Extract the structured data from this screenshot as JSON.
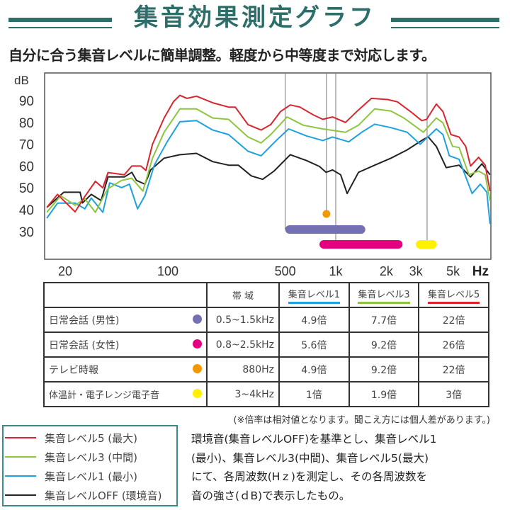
{
  "header": {
    "title": "集音効果測定グラフ",
    "subtitle": "自分に合う集音レベルに簡単調整。軽度から中等度まで対応します。",
    "accent_color": "#2e6e6a"
  },
  "chart_data": {
    "type": "line",
    "x_scale": "log",
    "xlim": [
      18.8,
      8300
    ],
    "ylim": [
      22,
      98
    ],
    "ylabel": "dB",
    "xlabel": "Hz",
    "grid": false,
    "y_ticks": [
      "90",
      "80",
      "70",
      "60",
      "50",
      "40",
      "30"
    ],
    "y_tick_values": [
      90,
      80,
      70,
      60,
      50,
      40,
      30
    ],
    "x_ticks": [
      {
        "label": "20",
        "value": 20
      },
      {
        "label": "100",
        "value": 100
      },
      {
        "label": "500",
        "value": 500
      },
      {
        "label": "1k",
        "value": 1000
      },
      {
        "label": "2k",
        "value": 2000
      },
      {
        "label": "3k",
        "value": 3000
      },
      {
        "label": "5k",
        "value": 5000
      }
    ],
    "series": [
      {
        "name": "集音レベル5 (最大)",
        "color": "#d7262e",
        "points": [
          [
            19,
            41
          ],
          [
            22,
            47
          ],
          [
            28,
            39
          ],
          [
            32,
            46
          ],
          [
            37,
            53
          ],
          [
            41,
            50
          ],
          [
            44,
            57
          ],
          [
            55,
            56
          ],
          [
            61,
            60
          ],
          [
            69,
            60
          ],
          [
            74,
            58
          ],
          [
            81,
            70
          ],
          [
            95,
            82
          ],
          [
            108,
            89.5
          ],
          [
            118,
            92.4
          ],
          [
            130,
            91
          ],
          [
            148,
            92
          ],
          [
            185,
            89
          ],
          [
            230,
            87
          ],
          [
            252,
            87
          ],
          [
            300,
            79
          ],
          [
            359,
            76.5
          ],
          [
            410,
            79
          ],
          [
            469,
            85
          ],
          [
            536,
            88
          ],
          [
            612,
            87
          ],
          [
            732,
            83.5
          ],
          [
            837,
            81.4
          ],
          [
            956,
            82.5
          ],
          [
            1143,
            80
          ],
          [
            1366,
            85.7
          ],
          [
            1632,
            91
          ],
          [
            2039,
            90.5
          ],
          [
            2330,
            89.4
          ],
          [
            2784,
            85
          ],
          [
            3254,
            80.8
          ],
          [
            3479,
            81.4
          ],
          [
            3974,
            88.4
          ],
          [
            4347,
            85
          ],
          [
            4856,
            74.4
          ],
          [
            5430,
            73.3
          ],
          [
            5944,
            69
          ],
          [
            6355,
            60
          ],
          [
            7100,
            64
          ],
          [
            7770,
            60.4
          ],
          [
            8300,
            48.5
          ]
        ]
      },
      {
        "name": "集音レベル3 (中間)",
        "color": "#8cc63f",
        "points": [
          [
            19,
            38.8
          ],
          [
            23,
            46.4
          ],
          [
            28,
            42
          ],
          [
            32,
            45
          ],
          [
            37,
            38.8
          ],
          [
            42,
            47
          ],
          [
            44,
            49.6
          ],
          [
            53,
            53.4
          ],
          [
            61,
            54.4
          ],
          [
            71,
            48.5
          ],
          [
            81,
            63.6
          ],
          [
            95,
            75.5
          ],
          [
            118,
            86.2
          ],
          [
            148,
            86.2
          ],
          [
            185,
            82
          ],
          [
            230,
            81.4
          ],
          [
            300,
            73.3
          ],
          [
            359,
            70.6
          ],
          [
            410,
            74.4
          ],
          [
            513,
            82.5
          ],
          [
            641,
            78.7
          ],
          [
            837,
            77
          ],
          [
            1143,
            75.5
          ],
          [
            1366,
            78.7
          ],
          [
            1706,
            86.2
          ],
          [
            2131,
            85.2
          ],
          [
            2546,
            82
          ],
          [
            3327,
            75.5
          ],
          [
            3974,
            82
          ],
          [
            4347,
            79.8
          ],
          [
            4968,
            69
          ],
          [
            5430,
            68.5
          ],
          [
            6215,
            56
          ],
          [
            7100,
            57.7
          ],
          [
            7770,
            56
          ],
          [
            8300,
            44
          ]
        ]
      },
      {
        "name": "集音レベル1 (最小)",
        "color": "#1ea1dc",
        "points": [
          [
            19,
            36.1
          ],
          [
            22,
            43
          ],
          [
            28,
            43
          ],
          [
            32,
            40.4
          ],
          [
            35,
            45.3
          ],
          [
            41,
            38.8
          ],
          [
            45,
            52.3
          ],
          [
            53,
            50.1
          ],
          [
            59,
            51.7
          ],
          [
            66,
            40.4
          ],
          [
            73,
            46.4
          ],
          [
            83,
            60.4
          ],
          [
            99,
            71.1
          ],
          [
            118,
            80.3
          ],
          [
            148,
            80.8
          ],
          [
            185,
            76.5
          ],
          [
            230,
            74.4
          ],
          [
            300,
            66.8
          ],
          [
            359,
            64.7
          ],
          [
            449,
            72.2
          ],
          [
            524,
            77
          ],
          [
            670,
            73.8
          ],
          [
            837,
            71.7
          ],
          [
            956,
            73.3
          ],
          [
            1195,
            71.1
          ],
          [
            1428,
            75.5
          ],
          [
            1706,
            79.2
          ],
          [
            2131,
            77.6
          ],
          [
            2662,
            75.5
          ],
          [
            3184,
            70
          ],
          [
            3974,
            77
          ],
          [
            4347,
            74.4
          ],
          [
            4750,
            64.7
          ],
          [
            5430,
            63.1
          ],
          [
            6490,
            47.4
          ],
          [
            7260,
            51.7
          ],
          [
            7940,
            48
          ],
          [
            8300,
            33.4
          ]
        ]
      },
      {
        "name": "集音レベルOFF (環境音)",
        "color": "#222222",
        "points": [
          [
            19,
            41
          ],
          [
            24,
            48
          ],
          [
            30,
            48
          ],
          [
            31,
            43.1
          ],
          [
            35,
            47
          ],
          [
            40,
            44.2
          ],
          [
            44,
            55
          ],
          [
            55,
            55
          ],
          [
            61,
            57.1
          ],
          [
            65,
            53.4
          ],
          [
            73,
            51.7
          ],
          [
            79,
            58.2
          ],
          [
            95,
            63.6
          ],
          [
            118,
            65.2
          ],
          [
            148,
            65.8
          ],
          [
            185,
            62
          ],
          [
            230,
            60.4
          ],
          [
            263,
            60.4
          ],
          [
            314,
            55.5
          ],
          [
            367,
            53.9
          ],
          [
            429,
            57.7
          ],
          [
            536,
            65.2
          ],
          [
            670,
            62.5
          ],
          [
            800,
            59.8
          ],
          [
            875,
            57.1
          ],
          [
            956,
            58.2
          ],
          [
            1069,
            56
          ],
          [
            1169,
            47.4
          ],
          [
            1366,
            57.1
          ],
          [
            1706,
            60.4
          ],
          [
            2131,
            63.6
          ],
          [
            2662,
            67.4
          ],
          [
            3327,
            72.2
          ],
          [
            3556,
            73.3
          ],
          [
            3974,
            69
          ],
          [
            4546,
            59.3
          ],
          [
            5430,
            60.4
          ],
          [
            6355,
            55
          ],
          [
            7420,
            61
          ],
          [
            8300,
            56
          ]
        ]
      }
    ],
    "bands": [
      {
        "label": "日常会話 (男性)",
        "from": 500,
        "to": 1500,
        "color": "#7370b3"
      },
      {
        "label": "日常会話 (女性)",
        "from": 800,
        "to": 2500,
        "color": "#e4007f"
      },
      {
        "label": "テレビ時報",
        "at": 880,
        "color": "#f39800"
      },
      {
        "label": "体温計・電子レンジ電子音",
        "from": 3000,
        "to": 4000,
        "color": "#fff100"
      }
    ],
    "reference_lines": [
      500,
      880,
      1000,
      3500
    ]
  },
  "table": {
    "headers": [
      "",
      "帯 域",
      "集音レベル1",
      "集音レベル3",
      "集音レベル5"
    ],
    "header_colors": [
      "",
      "",
      "#1ea1dc",
      "#8cc63f",
      "#d7262e"
    ],
    "rows": [
      {
        "label": "日常会話 (男性)",
        "dot_color": "#7370b3",
        "band": "0.5~1.5kHz",
        "l1": "4.9倍",
        "l3": "7.7倍",
        "l5": "22倍"
      },
      {
        "label": "日常会話 (女性)",
        "dot_color": "#e4007f",
        "band": "0.8~2.5kHz",
        "l1": "5.6倍",
        "l3": "9.2倍",
        "l5": "26倍"
      },
      {
        "label": "テレビ時報",
        "dot_color": "#f39800",
        "band": "880Hz",
        "l1": "4.9倍",
        "l3": "9.2倍",
        "l5": "22倍"
      },
      {
        "label": "体温計・電子レンジ電子音",
        "dot_color": "#fff100",
        "band": "3~4kHz",
        "l1": "1倍",
        "l3": "1.9倍",
        "l5": "3倍"
      }
    ],
    "note": "(※倍率は相対値となります。聞こえ方には個人差があります。)"
  },
  "legend": [
    {
      "label": "集音レベル5 (最大)",
      "color": "#d7262e"
    },
    {
      "label": "集音レベル3 (中間)",
      "color": "#8cc63f"
    },
    {
      "label": "集音レベル1 (最小)",
      "color": "#1ea1dc"
    },
    {
      "label": "集音レベルOFF (環境音)",
      "color": "#222222"
    }
  ],
  "description": [
    "環境音(集音レベルOFF)を基準とし、集音レベル1",
    "(最小)、集音レベル3(中間)、集音レベル5(最大)",
    "にて、各周波数(Hｚ)を測定し、その各周波数を",
    "音の強さ(ｄB)で表示したもの。"
  ]
}
